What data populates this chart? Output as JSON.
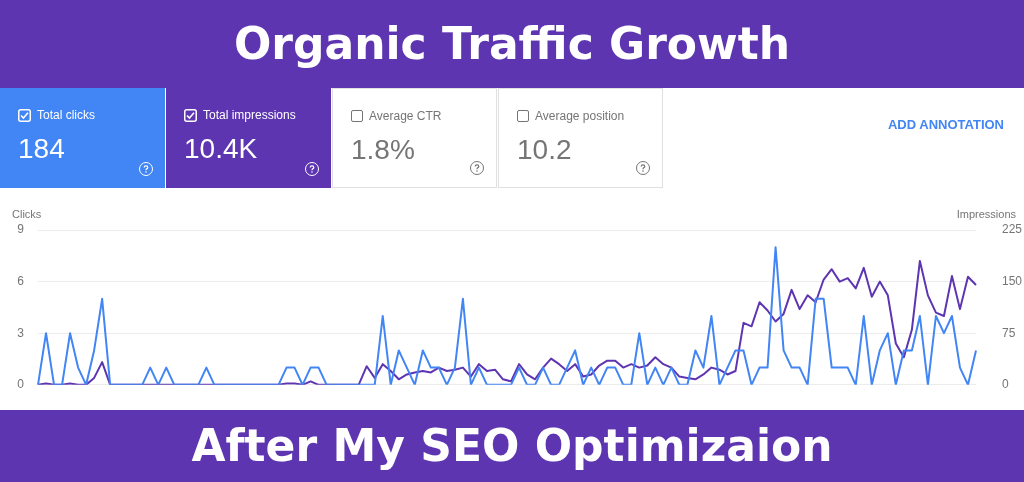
{
  "chart_data": {
    "type": "line",
    "title": "Organic Traffic Growth",
    "subtitle": "After My SEO Optimizaion",
    "ylabel": "Clicks",
    "y2label": "Impressions",
    "annotations": [
      "184",
      "10.4K",
      "Average CTR",
      "1.8%",
      "Average position",
      "10.2",
      "ADD ANNOTATION"
    ],
    "categories": [
      null,
      null,
      null,
      null,
      null,
      null,
      null,
      null,
      null,
      null,
      null,
      null,
      null,
      null,
      null,
      null,
      null,
      null,
      null,
      null,
      null,
      null,
      null,
      null,
      null,
      null,
      null,
      null,
      null,
      null,
      null,
      null,
      null,
      null,
      null,
      null,
      null,
      null,
      null,
      null,
      null,
      null,
      null,
      null,
      null,
      null,
      null,
      null,
      null,
      null,
      null,
      null,
      null,
      null,
      null,
      null,
      null,
      null,
      null,
      null,
      null,
      null,
      null,
      null,
      null,
      null,
      null,
      null,
      null,
      null,
      null,
      null,
      null,
      null,
      null,
      null,
      null,
      null,
      null,
      null,
      null,
      null,
      null,
      null,
      null,
      null,
      null,
      null,
      null,
      null,
      null,
      null,
      null,
      null,
      null,
      null,
      null,
      null,
      null,
      null,
      null,
      null,
      null,
      null,
      null,
      null,
      null,
      null,
      null,
      null,
      null,
      null,
      null,
      null,
      null,
      null,
      null,
      null
    ],
    "series": [
      {
        "name": "Total clicks",
        "color": "#4285f4",
        "values": [
          0,
          3,
          0,
          0,
          3,
          1,
          0,
          2,
          5,
          0,
          0,
          0,
          0,
          0,
          1,
          0,
          1,
          0,
          0,
          0,
          0,
          1,
          0,
          0,
          0,
          0,
          0,
          0,
          0,
          0,
          0,
          1,
          1,
          0,
          1,
          1,
          0,
          0,
          0,
          0,
          0,
          0,
          0,
          4,
          0,
          2,
          1,
          0,
          2,
          1,
          1,
          0,
          1,
          5,
          0,
          1,
          0,
          0,
          0,
          0,
          1,
          0,
          0,
          1,
          0,
          0,
          1,
          2,
          0,
          1,
          0,
          1,
          1,
          0,
          0,
          3,
          0,
          1,
          0,
          1,
          0,
          0,
          2,
          1,
          4,
          0,
          1,
          2,
          2,
          0,
          1,
          1,
          8,
          2,
          1,
          1,
          0,
          5,
          5,
          1,
          1,
          1,
          0,
          4,
          0,
          2,
          3,
          0,
          2,
          2,
          4,
          0,
          4,
          3,
          4,
          1,
          0,
          2
        ]
      },
      {
        "name": "Total impressions",
        "color": "#5e35b1",
        "axis": "y2",
        "values": [
          0,
          2,
          0,
          0,
          2,
          0,
          0,
          10,
          33,
          0,
          0,
          0,
          0,
          0,
          0,
          0,
          0,
          0,
          0,
          0,
          0,
          0,
          0,
          0,
          0,
          0,
          0,
          0,
          0,
          0,
          0,
          2,
          2,
          0,
          5,
          0,
          0,
          0,
          0,
          0,
          0,
          27,
          10,
          30,
          20,
          8,
          15,
          18,
          20,
          18,
          25,
          20,
          22,
          25,
          12,
          30,
          20,
          22,
          8,
          5,
          30,
          15,
          8,
          25,
          38,
          30,
          20,
          30,
          12,
          15,
          28,
          35,
          35,
          25,
          30,
          25,
          28,
          40,
          30,
          25,
          12,
          10,
          8,
          15,
          25,
          22,
          15,
          20,
          90,
          85,
          120,
          108,
          92,
          103,
          138,
          110,
          130,
          120,
          153,
          168,
          150,
          155,
          140,
          170,
          128,
          150,
          130,
          60,
          40,
          80,
          180,
          130,
          105,
          100,
          158,
          110,
          157,
          145
        ]
      }
    ],
    "ylim": [
      0,
      9
    ],
    "yticks": [
      0,
      3,
      6,
      9
    ],
    "y2lim": [
      0,
      225
    ],
    "y2ticks": [
      0,
      75,
      150,
      225
    ],
    "legend": "top left",
    "grid": "y",
    "tick_labels": "y",
    "marker": "none",
    "line_style": "solid"
  }
}
